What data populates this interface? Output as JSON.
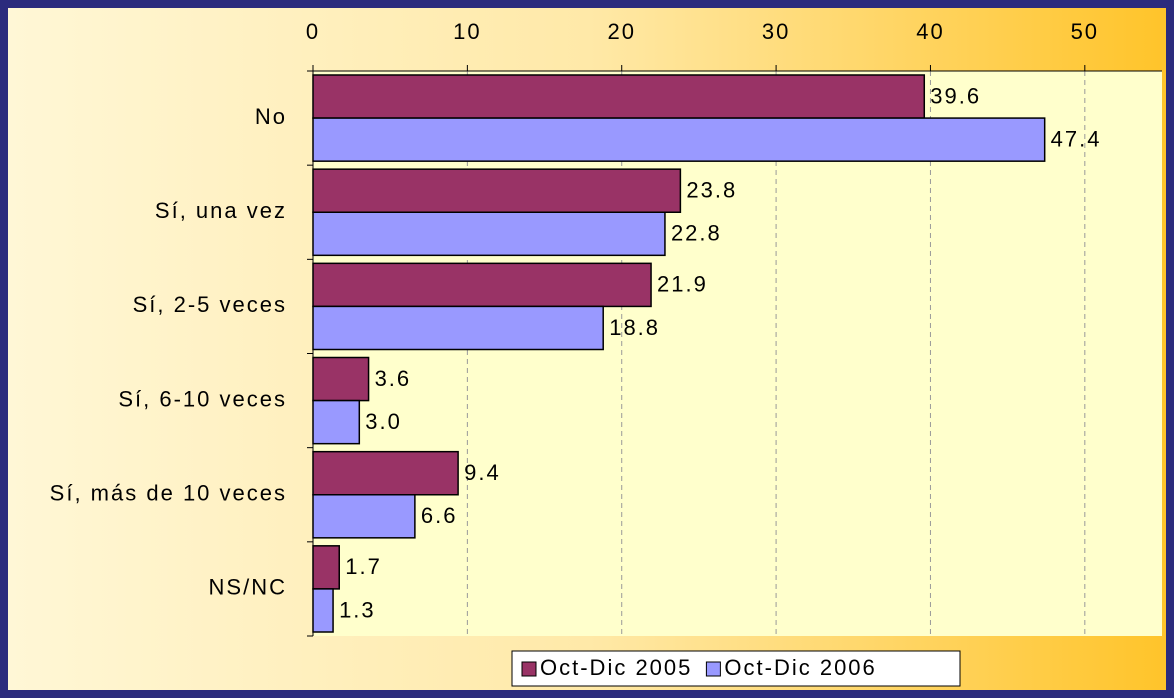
{
  "chart_data": {
    "type": "bar",
    "orientation": "horizontal",
    "categories": [
      "No",
      "Sí, una vez",
      "Sí, 2-5 veces",
      "Sí, 6-10 veces",
      "Sí, más de 10 veces",
      "NS/NC"
    ],
    "series": [
      {
        "name": "Oct-Dic 2005",
        "color": "#993366",
        "values": [
          39.6,
          23.8,
          21.9,
          3.6,
          9.4,
          1.7
        ],
        "value_labels": [
          "39.6",
          "23.8",
          "21.9",
          "3.6",
          "9.4",
          "1.7"
        ]
      },
      {
        "name": "Oct-Dic 2006",
        "color": "#9999ff",
        "values": [
          47.4,
          22.8,
          18.8,
          3.0,
          6.6,
          1.3
        ],
        "value_labels": [
          "47.4",
          "22.8",
          "18.8",
          "3.0",
          "6.6",
          "1.3"
        ]
      }
    ],
    "xlim": [
      0,
      55
    ],
    "xticks": [
      0,
      10,
      20,
      30,
      40,
      50
    ],
    "grid": true,
    "legend": "bottom"
  }
}
